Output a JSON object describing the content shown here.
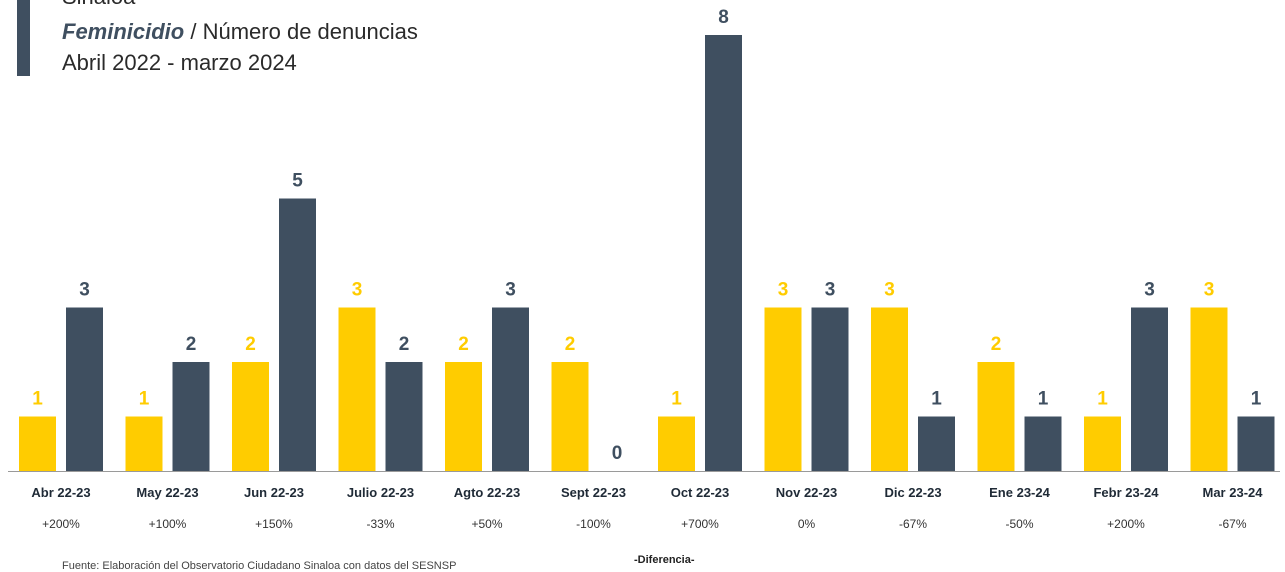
{
  "header": {
    "state": "Sinaloa",
    "crime": "Feminicidio",
    "separator": " / ",
    "metric": "Número de denuncias",
    "period": "Abril 2022 - marzo 2024"
  },
  "colors": {
    "series_2022_2023": "#ffcc00",
    "series_2023_2024": "#3f4f60",
    "accent": "#3f4f60"
  },
  "chart_data": {
    "type": "bar",
    "title": "",
    "xlabel": "",
    "ylabel": "",
    "ylim": [
      0,
      8
    ],
    "grid": false,
    "categories": [
      "Abr 22-23",
      "May 22-23",
      "Jun 22-23",
      "Julio 22-23",
      "Agto 22-23",
      "Sept 22-23",
      "Oct 22-23",
      "Nov 22-23",
      "Dic 22-23",
      "Ene 23-24",
      "Febr 23-24",
      "Mar 23-24"
    ],
    "series": [
      {
        "values": [
          1,
          1,
          2,
          3,
          2,
          2,
          1,
          3,
          3,
          2,
          1,
          3
        ]
      },
      {
        "values": [
          3,
          2,
          5,
          2,
          3,
          0,
          8,
          3,
          1,
          1,
          3,
          1
        ]
      }
    ],
    "differences": [
      "+200%",
      "+100%",
      "+150%",
      "-33%",
      "+50%",
      "-100%",
      "+700%",
      "0%",
      "-67%",
      "-50%",
      "+200%",
      "-67%"
    ],
    "differences_label": "-Diferencia-"
  },
  "footnote": "Fuente: Elaboración del Observatorio Ciudadano Sinaloa con datos del SESNSP"
}
